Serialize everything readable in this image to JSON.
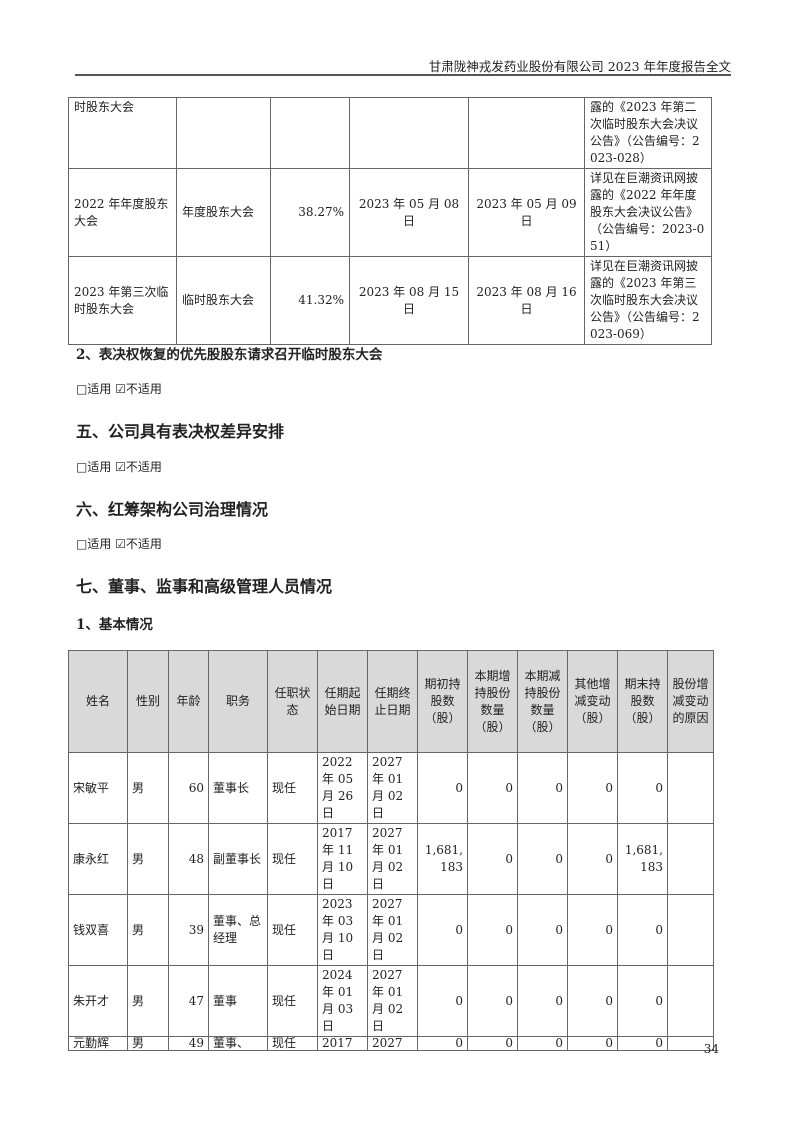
{
  "header": {
    "title": "甘肃陇神戎发药业股份有限公司 2023 年年度报告全文"
  },
  "meeting_table": {
    "rows": [
      {
        "name": "时股东大会",
        "type": "",
        "ratio": "",
        "date": "",
        "disclose_date": "",
        "index": "露的《2023 年第二次临时股东大会决议公告》（公告编号：2023-028）"
      },
      {
        "name": "2022 年年度股东大会",
        "type": "年度股东大会",
        "ratio": "38.27%",
        "date": "2023 年 05 月 08 日",
        "disclose_date": "2023 年 05 月 09 日",
        "index": "详见在巨潮资讯网披露的《2022 年年度股东大会决议公告》（公告编号：2023-051）"
      },
      {
        "name": "2023 年第三次临时股东大会",
        "type": "临时股东大会",
        "ratio": "41.32%",
        "date": "2023 年 08 月 15 日",
        "disclose_date": "2023 年 08 月 16 日",
        "index": "详见在巨潮资讯网披露的《2023 年第三次临时股东大会决议公告》（公告编号：2023-069）"
      }
    ]
  },
  "sections": {
    "s2_title": "2、表决权恢复的优先股股东请求召开临时股东大会",
    "s5_title": "五、公司具有表决权差异安排",
    "s6_title": "六、红筹架构公司治理情况",
    "s7_title": "七、董事、监事和高级管理人员情况",
    "s7_1_title": "1、基本情况",
    "applicable": "□适用",
    "not_applicable": "☑不适用"
  },
  "staff_table": {
    "headers": [
      "姓名",
      "性别",
      "年龄",
      "职务",
      "任职状态",
      "任期起始日期",
      "任期终止日期",
      "期初持股数（股）",
      "本期增持股份数量（股）",
      "本期减持股份数量（股）",
      "其他增减变动（股）",
      "期末持股数（股）",
      "股份增减变动的原因"
    ],
    "rows": [
      [
        "宋敏平",
        "男",
        "60",
        "董事长",
        "现任",
        "2022 年 05 月 26 日",
        "2027 年 01 月 02 日",
        "0",
        "0",
        "0",
        "0",
        "0",
        ""
      ],
      [
        "康永红",
        "男",
        "48",
        "副董事长",
        "现任",
        "2017 年 11 月 10 日",
        "2027 年 01 月 02 日",
        "1,681,183",
        "0",
        "0",
        "0",
        "1,681,183",
        ""
      ],
      [
        "钱双喜",
        "男",
        "39",
        "董事、总经理",
        "现任",
        "2023 年 03 月 10 日",
        "2027 年 01 月 02 日",
        "0",
        "0",
        "0",
        "0",
        "0",
        ""
      ],
      [
        "朱开才",
        "男",
        "47",
        "董事",
        "现任",
        "2024 年 01 月 03 日",
        "2027 年 01 月 02 日",
        "0",
        "0",
        "0",
        "0",
        "0",
        ""
      ],
      [
        "元勤辉",
        "男",
        "49",
        "董事、",
        "现任",
        "2017",
        "2027",
        "0",
        "0",
        "0",
        "0",
        "0",
        ""
      ]
    ]
  },
  "footer": {
    "page_number": "34"
  }
}
